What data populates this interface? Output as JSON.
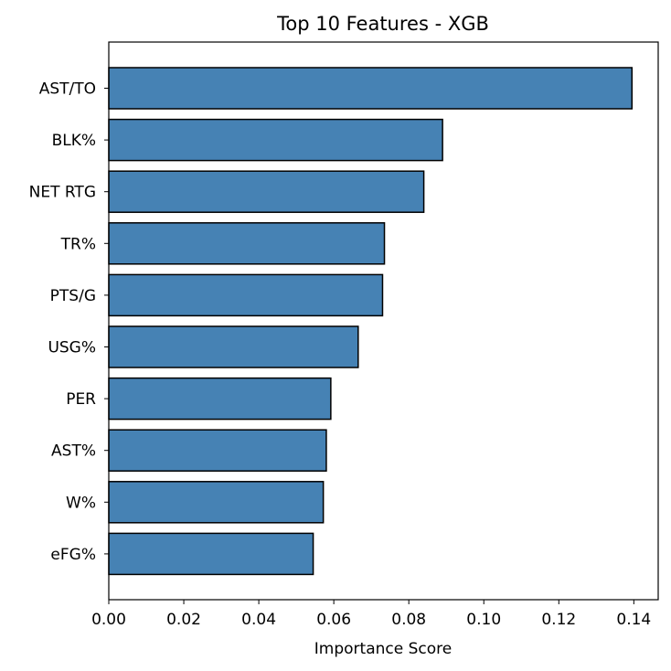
{
  "chart_data": {
    "type": "bar",
    "orientation": "horizontal",
    "title": "Top 10 Features - XGB",
    "xlabel": "Importance Score",
    "ylabel": "",
    "categories": [
      "AST/TO",
      "BLK%",
      "NET RTG",
      "TR%",
      "PTS/G",
      "USG%",
      "PER",
      "AST%",
      "W%",
      "eFG%"
    ],
    "values": [
      0.1395,
      0.089,
      0.084,
      0.0735,
      0.073,
      0.0665,
      0.0592,
      0.058,
      0.0572,
      0.0545
    ],
    "xlim": [
      0,
      0.1465
    ],
    "xticks": [
      0.0,
      0.02,
      0.04,
      0.06,
      0.08,
      0.1,
      0.12,
      0.14
    ],
    "xtick_labels": [
      "0.00",
      "0.02",
      "0.04",
      "0.06",
      "0.08",
      "0.10",
      "0.12",
      "0.14"
    ],
    "bar_color": "#4682b4",
    "edge_color": "#000000",
    "grid": false,
    "legend": "none"
  }
}
